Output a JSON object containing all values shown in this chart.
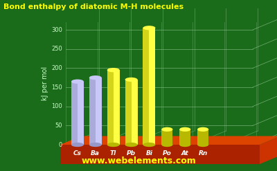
{
  "elements": [
    "Cs",
    "Ba",
    "Tl",
    "Pb",
    "Bi",
    "Po",
    "At",
    "Rn"
  ],
  "values": [
    165,
    175,
    195,
    170,
    305,
    40,
    40,
    40
  ],
  "is_small": [
    false,
    false,
    false,
    false,
    false,
    true,
    true,
    true
  ],
  "purple_light": "#c8c8f8",
  "purple_dark": "#9898c8",
  "purple_top": "#b8b8e8",
  "yellow_light": "#ffff44",
  "yellow_dark": "#b8b800",
  "yellow_top": "#ffff00",
  "title": "Bond enthalpy of diatomic M-H molecules",
  "ylabel": "kJ per mol",
  "ytick_vals": [
    0,
    50,
    100,
    150,
    200,
    250,
    300
  ],
  "ymax": 320,
  "bg_color": "#1a6b1a",
  "grid_color": "#99cc99",
  "base_color_top": "#dd4400",
  "base_color_side": "#aa2200",
  "watermark": "www.webelements.com",
  "title_color": "#ffff00",
  "watermark_color": "#ffff00",
  "label_color": "#ccffcc",
  "elem_label_color": "#ffffff",
  "tick_color": "#ccffcc"
}
